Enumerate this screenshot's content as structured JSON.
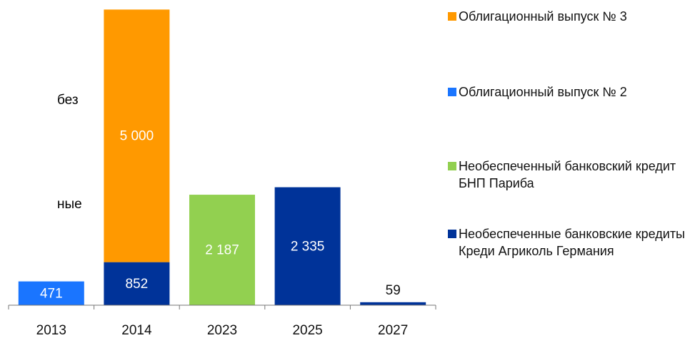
{
  "chart_data": {
    "type": "bar",
    "stacked": true,
    "annotations": [
      "без",
      "ные"
    ],
    "categories": [
      "2013",
      "2014",
      "2023",
      "2025",
      "2027"
    ],
    "series": [
      {
        "name": "Облигационный выпуск № 3",
        "color": "#ff9900",
        "values": [
          null,
          5000,
          null,
          null,
          null
        ],
        "value_labels": [
          null,
          "5 000",
          null,
          null,
          null
        ]
      },
      {
        "name": "Облигационный выпуск № 2",
        "color": "#1a75ff",
        "values": [
          471,
          null,
          null,
          null,
          null
        ]
      },
      {
        "name": "Необеспеченный банковский кредит БНП Париба",
        "color": "#92d050",
        "values": [
          null,
          null,
          2187,
          null,
          null
        ],
        "value_labels": [
          null,
          null,
          "2 187",
          null,
          null
        ]
      },
      {
        "name": "Необеспеченные банковские кредиты Креди Агриколь Германия",
        "color": "#003399",
        "values": [
          null,
          852,
          null,
          2335,
          59
        ],
        "value_labels": [
          null,
          null,
          null,
          "2 335",
          null
        ]
      }
    ],
    "ylim": [
      0,
      5900
    ]
  }
}
